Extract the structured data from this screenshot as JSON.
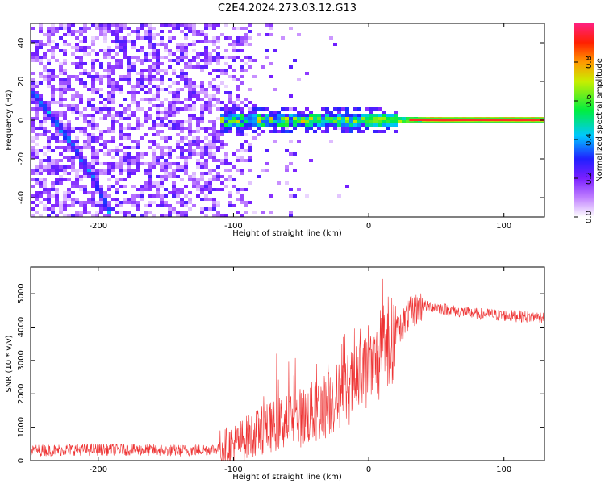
{
  "title": "C2E4.2024.273.03.12.G13",
  "chart_data": [
    {
      "type": "heatmap",
      "xlabel": "Height of straight line (km)",
      "ylabel": "Frequency (Hz)",
      "xlim": [
        -250,
        130
      ],
      "ylim": [
        -50,
        50
      ],
      "xticks": [
        -200,
        -100,
        0,
        100
      ],
      "yticks": [
        -40,
        -20,
        0,
        20,
        40
      ],
      "colorbar": {
        "label": "Normalized spectral amplitude",
        "range": [
          0,
          1
        ],
        "ticks": [
          "0.0",
          "0.2",
          "0.4",
          "0.6",
          "0.8"
        ],
        "tick_values": [
          0,
          0.2,
          0.4,
          0.6,
          0.8
        ]
      },
      "features": [
        {
          "name": "diagonal streak",
          "x": [
            -250,
            -238,
            -220,
            -205,
            -195,
            -190
          ],
          "y": [
            15,
            5,
            -12,
            -28,
            -42,
            -50
          ],
          "amplitude": 0.45
        },
        {
          "name": "faint diagonal streak",
          "x": [
            -190,
            -180,
            -172,
            -166
          ],
          "y": [
            48,
            35,
            25,
            15
          ],
          "amplitude": 0.15
        },
        {
          "name": "zero-frequency line",
          "x_range": [
            -110,
            130
          ],
          "y": 0,
          "amplitude": [
            0.4,
            0.75,
            1.0
          ]
        }
      ]
    },
    {
      "type": "line",
      "xlabel": "Height of straight line (km)",
      "ylabel": "SNR (10 * v/v)",
      "xlim": [
        -250,
        130
      ],
      "ylim": [
        0,
        5800
      ],
      "xticks": [
        -200,
        -100,
        0,
        100
      ],
      "yticks": [
        0,
        1000,
        2000,
        3000,
        4000,
        5000
      ],
      "series": [
        {
          "name": "SNR",
          "color": "#ee3333",
          "x": [
            -250,
            -220,
            -180,
            -140,
            -115,
            -100,
            -90,
            -80,
            -70,
            -60,
            -50,
            -40,
            -30,
            -20,
            -10,
            0,
            10,
            20,
            30,
            40,
            50,
            60,
            80,
            100,
            120,
            130
          ],
          "y": [
            300,
            330,
            330,
            300,
            340,
            500,
            700,
            900,
            1050,
            1200,
            1300,
            1450,
            1700,
            2000,
            2300,
            2700,
            3100,
            3800,
            4400,
            4650,
            4600,
            4500,
            4400,
            4350,
            4300,
            4300
          ]
        }
      ]
    }
  ]
}
